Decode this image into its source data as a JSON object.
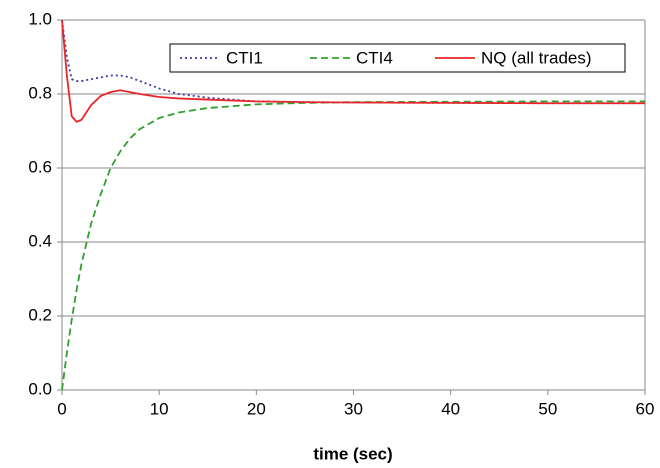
{
  "chart_data": {
    "type": "line",
    "x_label": "time (sec)",
    "x": [
      0,
      0.5,
      1,
      1.5,
      2,
      3,
      4,
      5,
      6,
      7,
      8,
      10,
      12,
      15,
      20,
      25,
      30,
      40,
      50,
      60
    ],
    "series": [
      {
        "name": "CTI1",
        "color": "#3a3aa8",
        "dash": "dotted",
        "values": [
          1.0,
          0.9,
          0.84,
          0.835,
          0.835,
          0.84,
          0.845,
          0.85,
          0.85,
          0.845,
          0.835,
          0.815,
          0.8,
          0.79,
          0.78,
          0.778,
          0.777,
          0.776,
          0.775,
          0.775
        ]
      },
      {
        "name": "CTI4",
        "color": "#2ea02e",
        "dash": "dashed",
        "values": [
          0,
          0.1,
          0.19,
          0.27,
          0.34,
          0.45,
          0.53,
          0.6,
          0.645,
          0.68,
          0.705,
          0.735,
          0.75,
          0.762,
          0.772,
          0.776,
          0.778,
          0.779,
          0.78,
          0.78
        ]
      },
      {
        "name": "NQ (all trades)",
        "color": "#e8262a",
        "dash": "solid",
        "values": [
          1.0,
          0.85,
          0.74,
          0.725,
          0.73,
          0.77,
          0.795,
          0.805,
          0.81,
          0.805,
          0.8,
          0.792,
          0.788,
          0.785,
          0.78,
          0.778,
          0.777,
          0.776,
          0.775,
          0.775
        ]
      }
    ],
    "xlim": [
      0,
      60
    ],
    "xticks": [
      0,
      10,
      20,
      30,
      40,
      50,
      60
    ],
    "ylim": [
      0,
      1
    ],
    "yticks": [
      {
        "value": 0,
        "label": "0.0"
      },
      {
        "value": 0.2,
        "label": "0.2"
      },
      {
        "value": 0.4,
        "label": "0.4"
      },
      {
        "value": 0.6,
        "label": "0.6"
      },
      {
        "value": 0.8,
        "label": "0.8"
      },
      {
        "value": 1,
        "label": "1.0"
      }
    ],
    "grid": true,
    "legend": "top-right"
  }
}
